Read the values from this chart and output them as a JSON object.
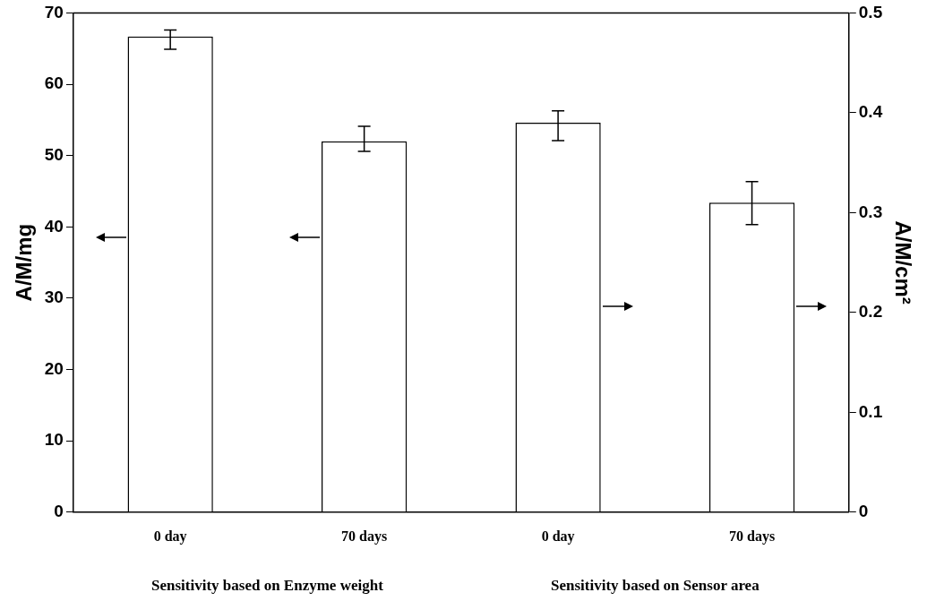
{
  "chart_data": {
    "type": "bar",
    "categories": [
      "0 day",
      "70 days",
      "0 day",
      "70 days"
    ],
    "series": [
      {
        "color": "#ffffff",
        "values": [
          66.7,
          52.0,
          null,
          null
        ],
        "errors": [
          [
            64.9,
            67.6
          ],
          [
            50.6,
            54.1
          ],
          null,
          null
        ]
      },
      {
        "color": "#ffffff",
        "axis": "y2",
        "values": [
          null,
          null,
          0.39,
          0.31
        ],
        "errors": [
          null,
          null,
          [
            0.372,
            0.402
          ],
          [
            0.288,
            0.331
          ]
        ]
      }
    ],
    "ylabel": "A/M/mg",
    "y2label": "A/M/cm²",
    "ylim": [
      0,
      70
    ],
    "yticks": [
      0,
      10,
      20,
      30,
      40,
      50,
      60,
      70
    ],
    "y2lim": [
      0,
      0.5
    ],
    "y2ticks": [
      0,
      0.1,
      0.2,
      0.3,
      0.4,
      0.5
    ],
    "annotations": [
      "Sensitivity based on Enzyme weight",
      "Sensitivity based on Sensor area"
    ],
    "grid": false,
    "legend": false
  }
}
